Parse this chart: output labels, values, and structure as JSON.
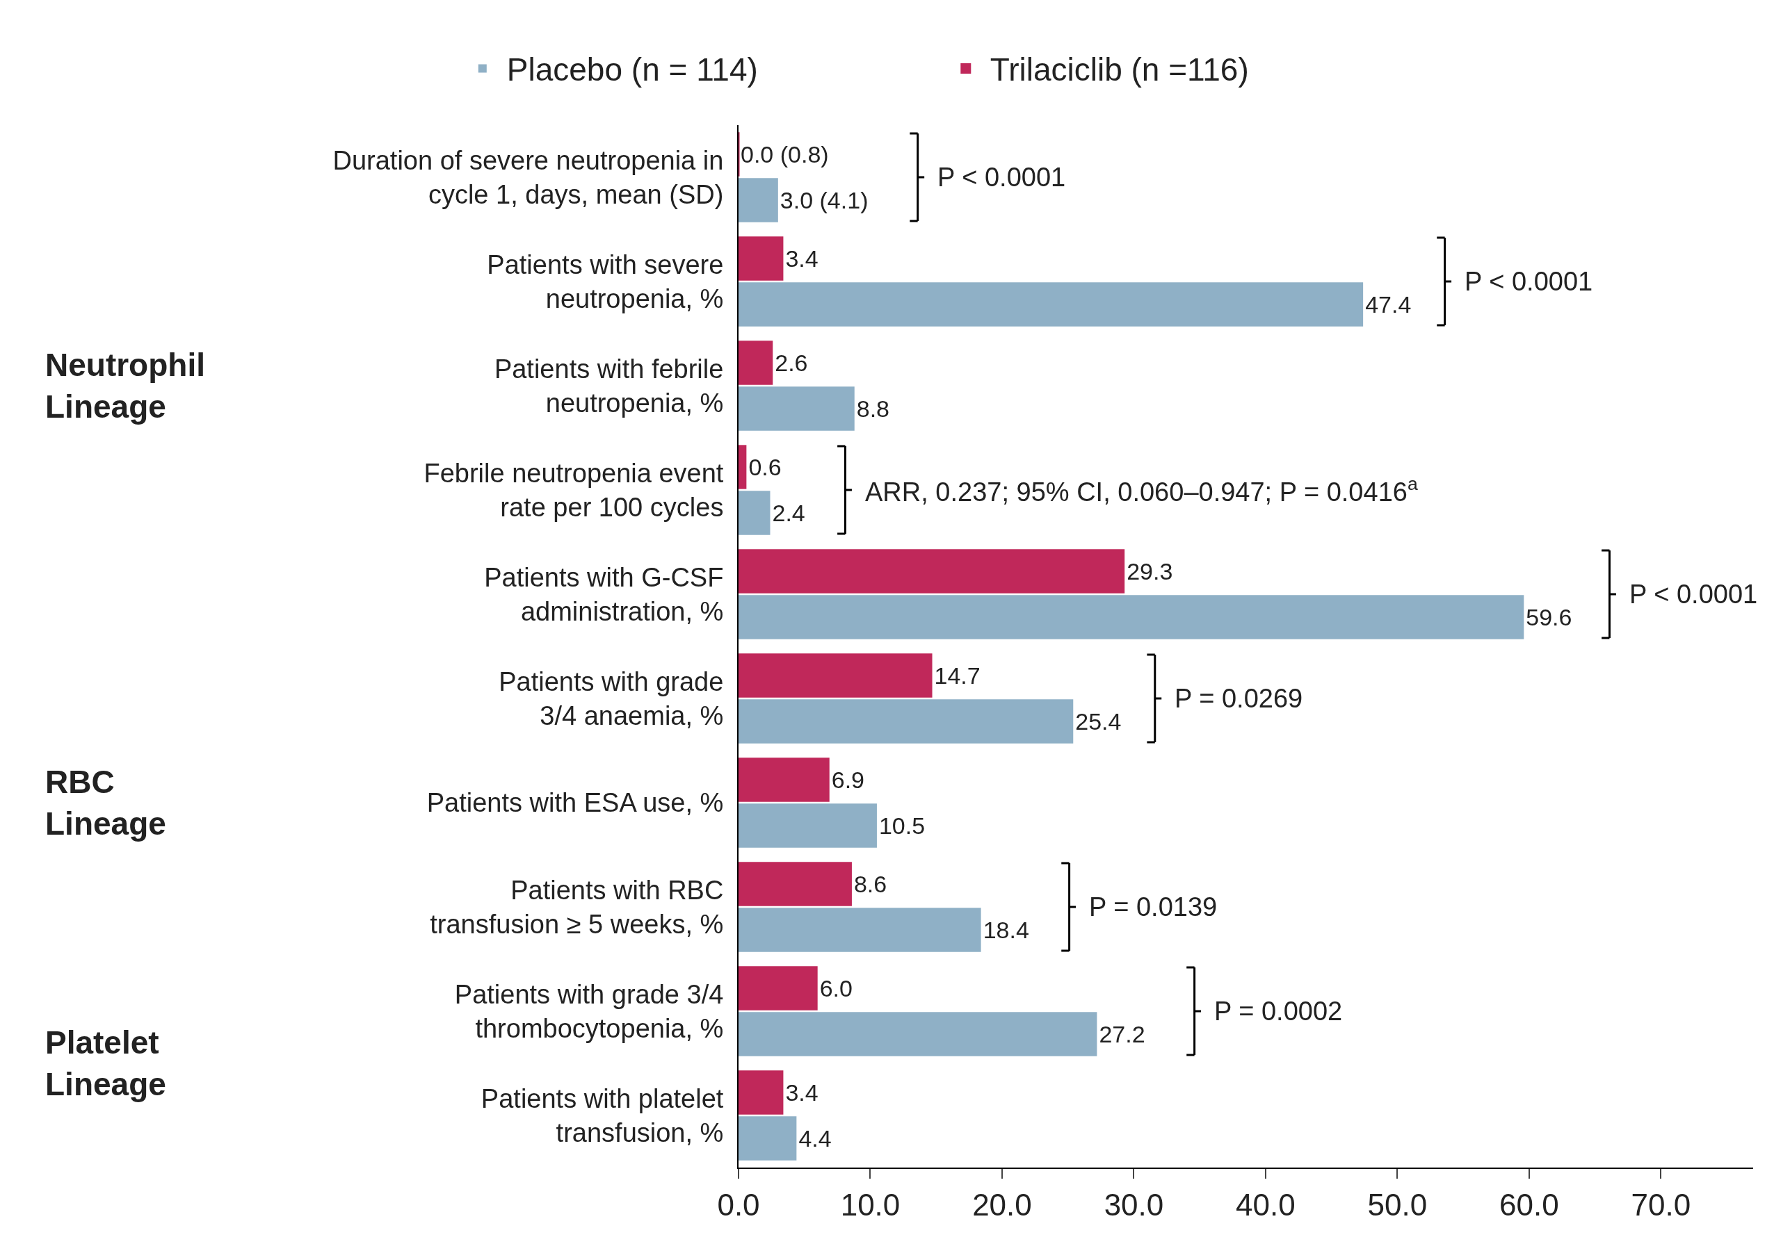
{
  "chart_data": {
    "type": "bar",
    "orientation": "horizontal",
    "categories": [
      "Duration of severe neutropenia in cycle 1, days, mean (SD)",
      "Patients with severe neutropenia, %",
      "Patients with febrile neutropenia, %",
      "Febrile neutropenia event rate per 100 cycles",
      "Patients with G-CSF administration, %",
      "Patients with grade 3/4 anaemia, %",
      "Patients with ESA use, %",
      "Patients with RBC transfusion ≥ 5 weeks, %",
      "Patients with grade 3/4 thrombocytopenia, %",
      "Patients with platelet transfusion, %"
    ],
    "series": [
      {
        "name": "Trilaciclib (n =116)",
        "color": "#c0285a",
        "values": [
          0.0,
          3.4,
          2.6,
          0.6,
          29.3,
          14.7,
          6.9,
          8.6,
          6.0,
          3.4
        ],
        "value_labels": [
          "0.0 (0.8)",
          "3.4",
          "2.6",
          "0.6",
          "29.3",
          "14.7",
          "6.9",
          "8.6",
          "6.0",
          "3.4"
        ]
      },
      {
        "name": "Placebo (n = 114)",
        "color": "#8fb0c6",
        "values": [
          3.0,
          47.4,
          8.8,
          2.4,
          59.6,
          25.4,
          10.5,
          18.4,
          27.2,
          4.4
        ],
        "value_labels": [
          "3.0 (4.1)",
          "47.4",
          "8.8",
          "2.4",
          "59.6",
          "25.4",
          "10.5",
          "18.4",
          "27.2",
          "4.4"
        ]
      }
    ],
    "xlim": [
      0,
      77
    ],
    "xticks": [
      {
        "value": 0,
        "label": "0.0"
      },
      {
        "value": 10,
        "label": "10.0"
      },
      {
        "value": 20,
        "label": "20.0"
      },
      {
        "value": 30,
        "label": "30.0"
      },
      {
        "value": 40,
        "label": "40.0"
      },
      {
        "value": 50,
        "label": "50.0"
      },
      {
        "value": 60,
        "label": "60.0"
      },
      {
        "value": 70,
        "label": "70.0"
      }
    ],
    "annotations": [
      "Neutrophil Lineage",
      "RBC Lineage",
      "Platelet Lineage",
      "P < 0.0001",
      "P < 0.0001",
      "ARR, 0.237; 95% CI, 0.060–0.947; P = 0.0416$^{a}$",
      "P < 0.0001",
      "P = 0.0269",
      "P = 0.0139",
      "P = 0.0002"
    ],
    "legend": "top",
    "grid": false
  }
}
